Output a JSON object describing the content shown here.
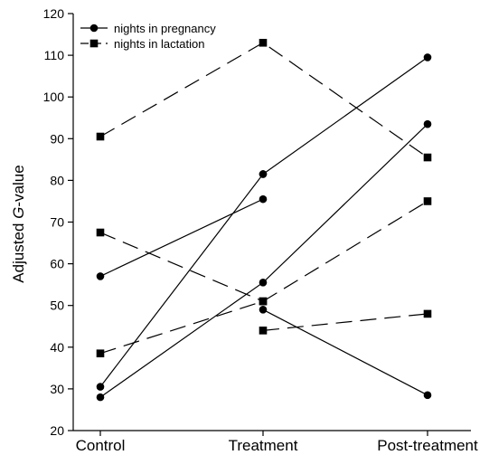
{
  "chart_data": {
    "type": "line",
    "categories": [
      "Control",
      "Treatment",
      "Post-treatment"
    ],
    "ylabel_prefix": "Adjusted ",
    "ylabel_italic": "G",
    "ylabel_suffix": "-value",
    "ylim": [
      20,
      120
    ],
    "yticks": [
      20,
      30,
      40,
      50,
      60,
      70,
      80,
      90,
      100,
      110,
      120
    ],
    "grid": false,
    "legend_position": "top-left",
    "legend": [
      {
        "label": "nights in pregnancy",
        "marker": "circle",
        "dash": "solid"
      },
      {
        "label": "nights in lactation",
        "marker": "square",
        "dash": "dashed"
      }
    ],
    "series": [
      {
        "group": "nights in pregnancy",
        "marker": "circle",
        "dash": "solid",
        "points": [
          {
            "x": "Control",
            "y": 57
          },
          {
            "x": "Treatment",
            "y": 75.5
          }
        ]
      },
      {
        "group": "nights in pregnancy",
        "marker": "circle",
        "dash": "solid",
        "points": [
          {
            "x": "Control",
            "y": 30.5
          },
          {
            "x": "Treatment",
            "y": 81.5
          }
        ]
      },
      {
        "group": "nights in pregnancy",
        "marker": "circle",
        "dash": "solid",
        "points": [
          {
            "x": "Control",
            "y": 28
          },
          {
            "x": "Treatment",
            "y": 55.5
          },
          {
            "x": "Post-treatment",
            "y": 93.5
          }
        ]
      },
      {
        "group": "nights in pregnancy",
        "marker": "circle",
        "dash": "solid",
        "points": [
          {
            "x": "Treatment",
            "y": 49
          },
          {
            "x": "Post-treatment",
            "y": 28.5
          }
        ]
      },
      {
        "group": "nights in pregnancy",
        "marker": "circle",
        "dash": "solid",
        "points": [
          {
            "x": "Treatment",
            "y": 81.5
          },
          {
            "x": "Post-treatment",
            "y": 109.5
          }
        ]
      },
      {
        "group": "nights in lactation",
        "marker": "square",
        "dash": "dashed",
        "points": [
          {
            "x": "Control",
            "y": 90.5
          },
          {
            "x": "Treatment",
            "y": 113
          },
          {
            "x": "Post-treatment",
            "y": 85.5
          }
        ]
      },
      {
        "group": "nights in lactation",
        "marker": "square",
        "dash": "dashed",
        "points": [
          {
            "x": "Control",
            "y": 67.5
          },
          {
            "x": "Treatment",
            "y": 51
          }
        ]
      },
      {
        "group": "nights in lactation",
        "marker": "square",
        "dash": "dashed",
        "points": [
          {
            "x": "Control",
            "y": 38.5
          },
          {
            "x": "Treatment",
            "y": 51
          },
          {
            "x": "Post-treatment",
            "y": 75
          }
        ]
      },
      {
        "group": "nights in lactation",
        "marker": "square",
        "dash": "dashed",
        "points": [
          {
            "x": "Treatment",
            "y": 44
          },
          {
            "x": "Post-treatment",
            "y": 48
          }
        ]
      }
    ]
  }
}
